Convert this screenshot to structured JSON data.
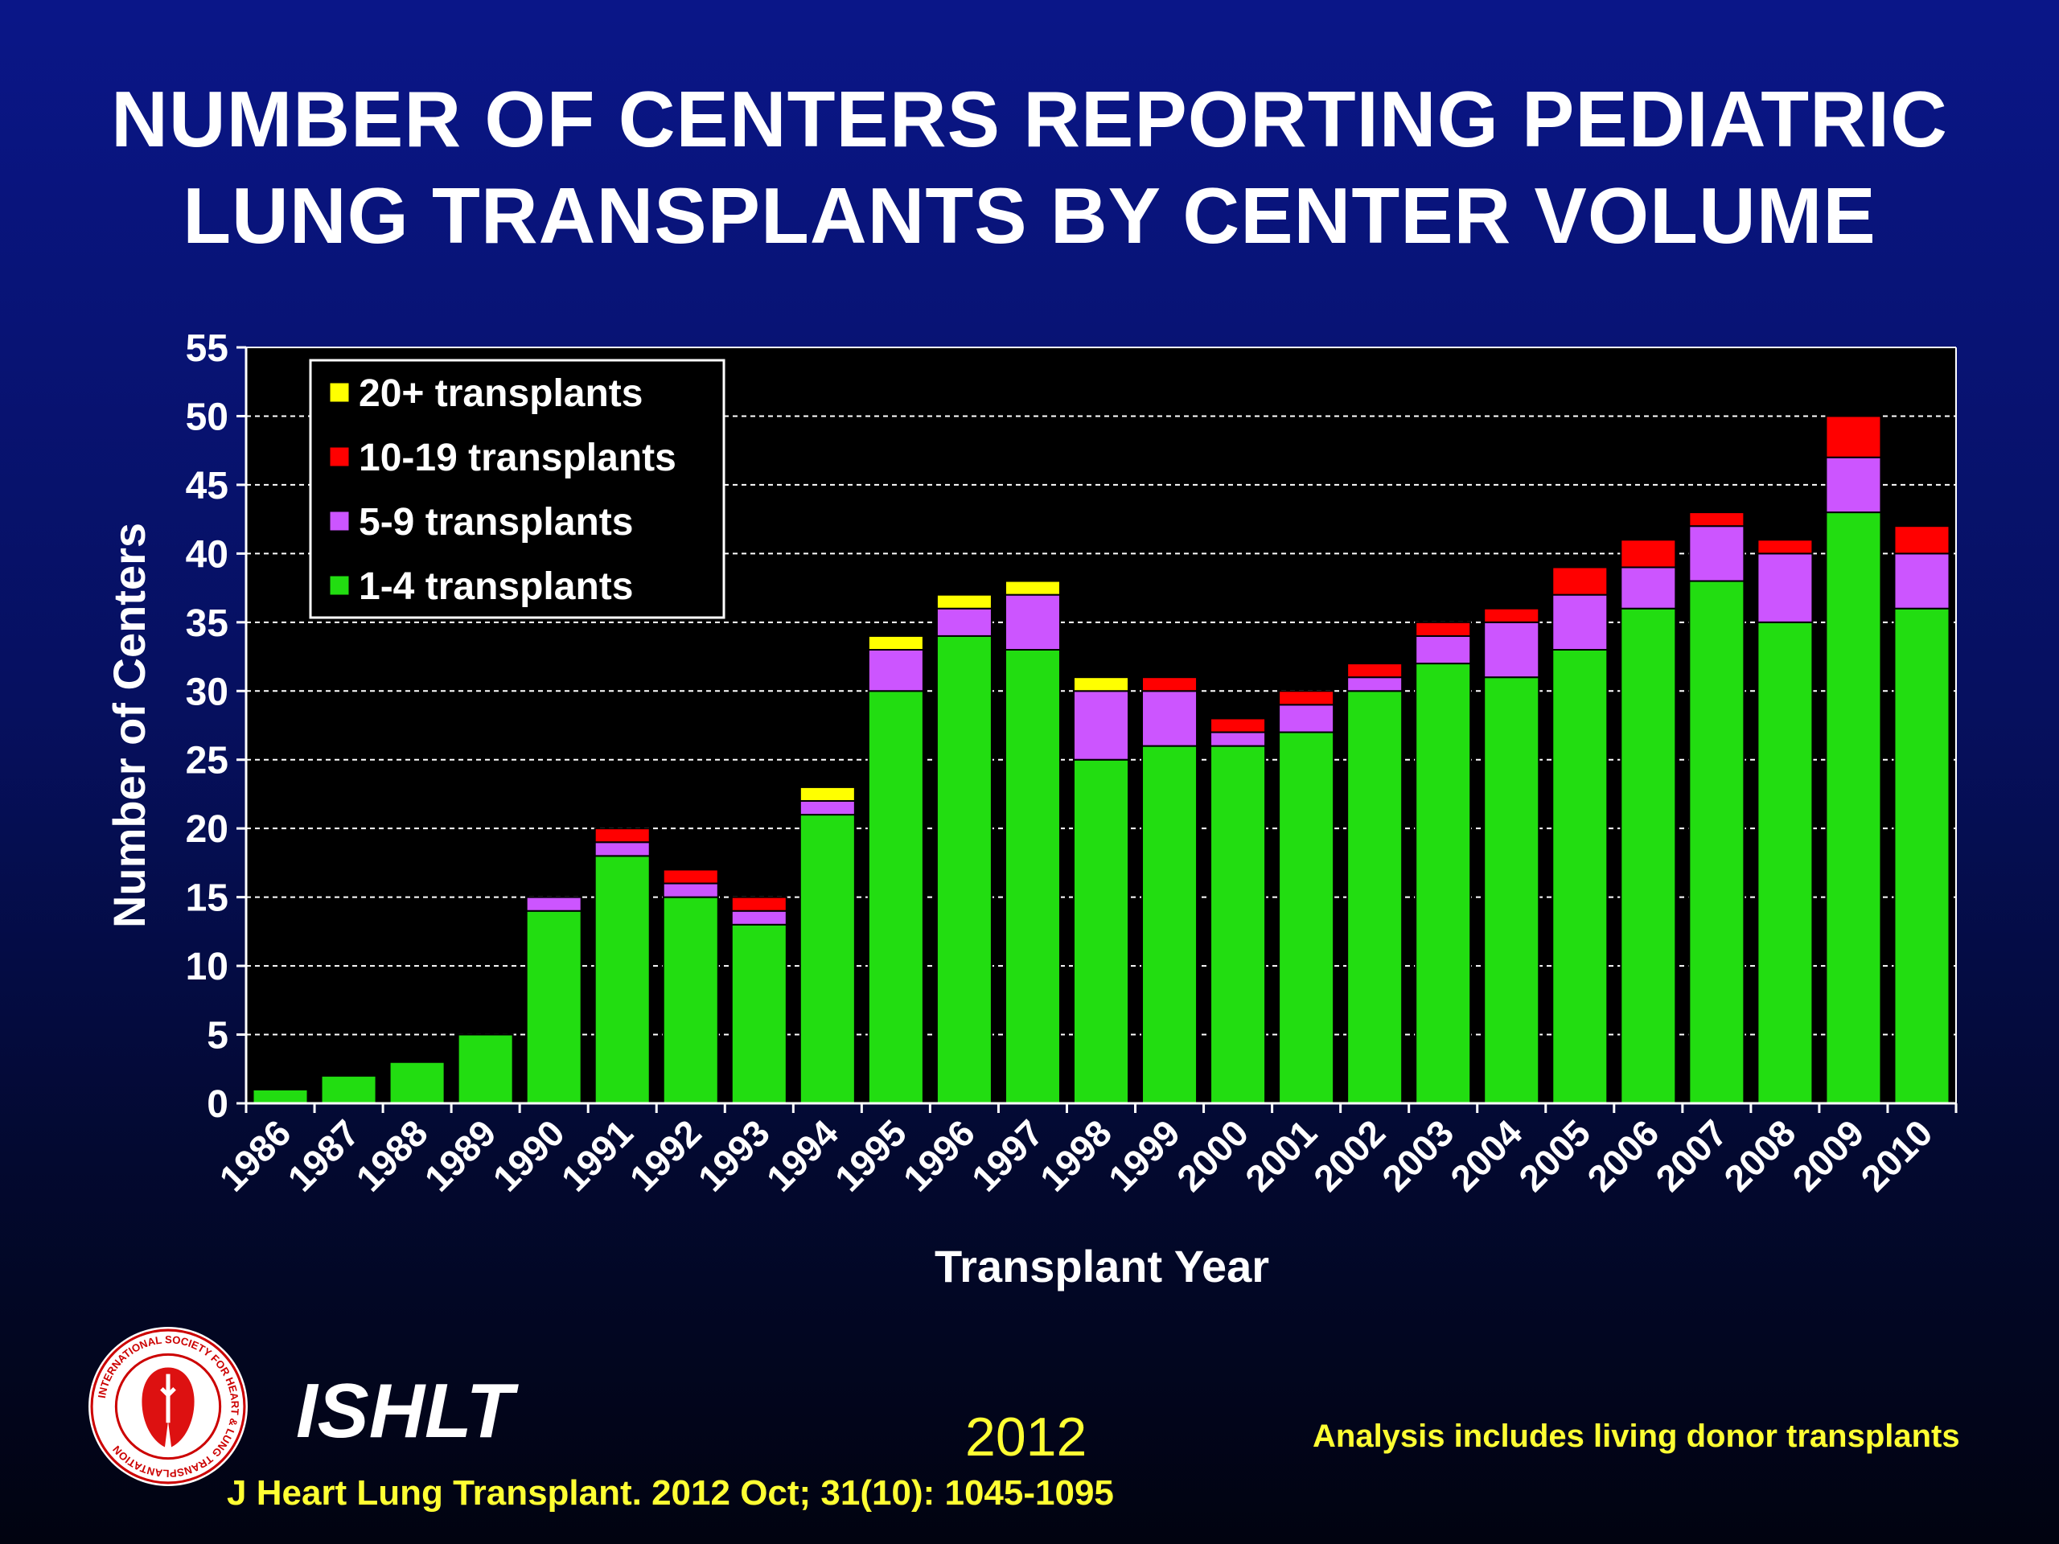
{
  "slide": {
    "title_line1": "NUMBER OF CENTERS REPORTING PEDIATRIC",
    "title_line2": "LUNG TRANSPLANTS BY CENTER VOLUME",
    "org_name": "ISHLT",
    "year": "2012",
    "footnote": "Analysis includes living donor transplants",
    "citation": "J Heart Lung Transplant.  2012 Oct; 31(10): 1045-1095",
    "logo_icon": "ishlt-seal-icon",
    "logo_text": "INTERNATIONAL SOCIETY FOR HEART & LUNG TRANSPLANTATION"
  },
  "chart_data": {
    "type": "bar",
    "stacked": true,
    "title": "NUMBER OF CENTERS REPORTING PEDIATRIC LUNG TRANSPLANTS BY CENTER VOLUME",
    "xlabel": "Transplant Year",
    "ylabel": "Number of Centers",
    "ylim": [
      0,
      55
    ],
    "yticks": [
      0,
      5,
      10,
      15,
      20,
      25,
      30,
      35,
      40,
      45,
      50,
      55
    ],
    "grid": true,
    "legend_position": "top-left",
    "categories": [
      "1986",
      "1987",
      "1988",
      "1989",
      "1990",
      "1991",
      "1992",
      "1993",
      "1994",
      "1995",
      "1996",
      "1997",
      "1998",
      "1999",
      "2000",
      "2001",
      "2002",
      "2003",
      "2004",
      "2005",
      "2006",
      "2007",
      "2008",
      "2009",
      "2010"
    ],
    "series": [
      {
        "name": "1-4 transplants",
        "color": "#22dd11",
        "values": [
          1,
          2,
          3,
          5,
          14,
          18,
          15,
          13,
          21,
          30,
          34,
          33,
          25,
          26,
          26,
          27,
          30,
          32,
          31,
          33,
          36,
          38,
          35,
          43,
          36
        ]
      },
      {
        "name": "5-9 transplants",
        "color": "#cc55ff",
        "values": [
          0,
          0,
          0,
          0,
          1,
          1,
          1,
          1,
          1,
          3,
          2,
          4,
          5,
          4,
          1,
          2,
          1,
          2,
          4,
          4,
          3,
          4,
          5,
          4,
          4
        ]
      },
      {
        "name": "10-19 transplants",
        "color": "#ff0000",
        "values": [
          0,
          0,
          0,
          0,
          0,
          1,
          1,
          1,
          0,
          0,
          0,
          0,
          0,
          1,
          1,
          1,
          1,
          1,
          1,
          2,
          2,
          1,
          1,
          3,
          2
        ]
      },
      {
        "name": "20+ transplants",
        "color": "#ffff00",
        "values": [
          0,
          0,
          0,
          0,
          0,
          0,
          0,
          0,
          1,
          1,
          1,
          1,
          1,
          0,
          0,
          0,
          0,
          0,
          0,
          0,
          0,
          0,
          0,
          0,
          0
        ]
      }
    ],
    "legend_order": [
      "20+ transplants",
      "10-19 transplants",
      "5-9 transplants",
      "1-4 transplants"
    ],
    "plot_background": "#000000",
    "gridline_color": "#ffffff"
  }
}
